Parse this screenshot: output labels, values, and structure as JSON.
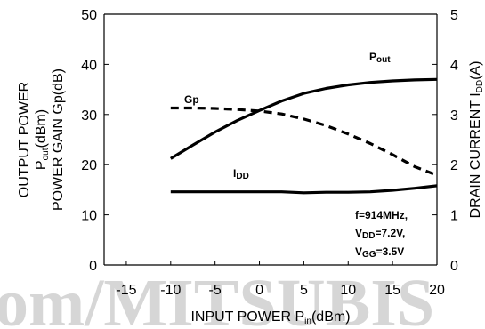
{
  "chart_data": {
    "type": "line",
    "x_ticks": [
      "-15",
      "-10",
      "-5",
      "0",
      "5",
      "10",
      "15",
      "20"
    ],
    "y_left_ticks": [
      "0",
      "10",
      "20",
      "30",
      "40",
      "50"
    ],
    "y_right_ticks": [
      "0",
      "1",
      "2",
      "3",
      "4",
      "5"
    ],
    "xlim": [
      -17.5,
      20
    ],
    "ylim_left": [
      0,
      50
    ],
    "ylim_right": [
      0,
      5
    ],
    "xlabel": {
      "main": "INPUT POWER P",
      "sub": "in",
      "unit": "(dBm)"
    },
    "ylabel_left": {
      "line1": "OUTPUT POWER",
      "line2_main": "P",
      "line2_sub": "out",
      "line2_unit": "(dBm)",
      "line3": "POWER GAIN Gp(dB)"
    },
    "ylabel_right": {
      "main": "DRAIN CURRENT I",
      "sub": "DD",
      "unit": "(A)"
    },
    "series": [
      {
        "name": "Pout",
        "label_main": "P",
        "label_sub": "out",
        "axis": "left",
        "style": "solid",
        "x": [
          -10,
          -7.5,
          -5,
          -2.5,
          0,
          2.5,
          5,
          7.5,
          10,
          12.5,
          15,
          17.5,
          20
        ],
        "y": [
          21.2,
          23.9,
          26.5,
          28.8,
          30.8,
          32.7,
          34.2,
          35.2,
          35.9,
          36.4,
          36.7,
          36.9,
          37.0
        ]
      },
      {
        "name": "Gp",
        "label_main": "Gp",
        "label_sub": "",
        "axis": "left",
        "style": "dashed",
        "x": [
          -10,
          -7.5,
          -5,
          -2.5,
          0,
          2.5,
          5,
          7.5,
          10,
          12.5,
          15,
          17.5,
          20
        ],
        "y": [
          31.3,
          31.3,
          31.2,
          31.0,
          30.7,
          30.1,
          29.1,
          27.8,
          26.1,
          24.2,
          22.0,
          19.6,
          17.9
        ]
      },
      {
        "name": "IDD",
        "label_main": "I",
        "label_sub": "DD",
        "axis": "right",
        "style": "solid",
        "x": [
          -10,
          -7.5,
          -5,
          -2.5,
          0,
          2.5,
          5,
          7.5,
          10,
          12.5,
          15,
          17.5,
          20
        ],
        "y": [
          1.46,
          1.46,
          1.46,
          1.46,
          1.46,
          1.46,
          1.44,
          1.45,
          1.45,
          1.46,
          1.49,
          1.53,
          1.58
        ]
      }
    ],
    "annotations": [
      {
        "main": "f=914MHz,",
        "sub": "",
        "rest": ""
      },
      {
        "main": "V",
        "sub": "DD",
        "rest": "=7.2V,"
      },
      {
        "main": "V",
        "sub": "GG",
        "rest": "=3.5V"
      }
    ],
    "watermark": "om/MITSUBIS",
    "grid": false,
    "legend": "inline labels"
  }
}
